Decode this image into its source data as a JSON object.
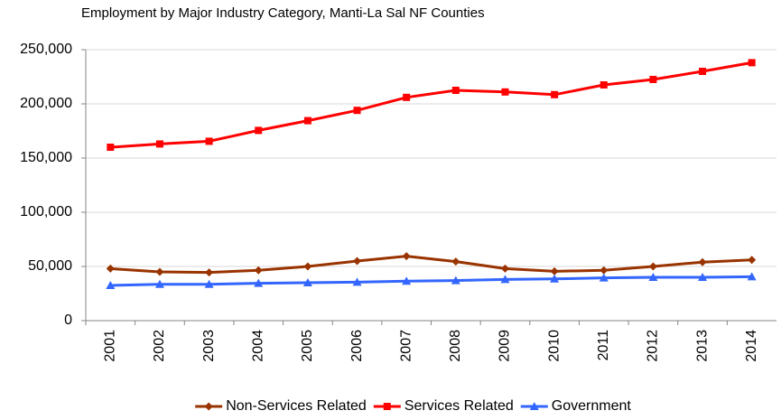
{
  "chart_data": {
    "type": "line",
    "title": "Employment by Major Industry Category, Manti-La Sal NF Counties",
    "categories": [
      "2001",
      "2002",
      "2003",
      "2004",
      "2005",
      "2006",
      "2007",
      "2008",
      "2009",
      "2010",
      "2011",
      "2012",
      "2013",
      "2014"
    ],
    "series": [
      {
        "name": "Non-Services Related",
        "color": "#993300",
        "marker": "diamond",
        "values": [
          48000,
          45000,
          44500,
          46500,
          50000,
          55000,
          59500,
          54500,
          48000,
          45500,
          46500,
          50000,
          54000,
          56000
        ]
      },
      {
        "name": "Services Related",
        "color": "#ff0000",
        "marker": "square",
        "values": [
          160000,
          163000,
          165500,
          175500,
          184500,
          194000,
          206000,
          212500,
          211000,
          208500,
          217500,
          222500,
          230000,
          238000
        ]
      },
      {
        "name": "Government",
        "color": "#3366ff",
        "marker": "triangle",
        "values": [
          32500,
          33500,
          33500,
          34500,
          35000,
          35500,
          36500,
          37000,
          38000,
          38500,
          39500,
          40000,
          40000,
          40500
        ]
      }
    ],
    "ylim": [
      0,
      250000
    ],
    "yticks": [
      0,
      {
        "value": 50000,
        "label": "50,000"
      },
      {
        "value": 100000,
        "label": "100,000"
      },
      {
        "value": 150000,
        "label": "150,000"
      },
      {
        "value": 200000,
        "label": "200,000"
      },
      {
        "value": 250000,
        "label": "250,000"
      }
    ],
    "grid": true,
    "legend": "bottom"
  }
}
